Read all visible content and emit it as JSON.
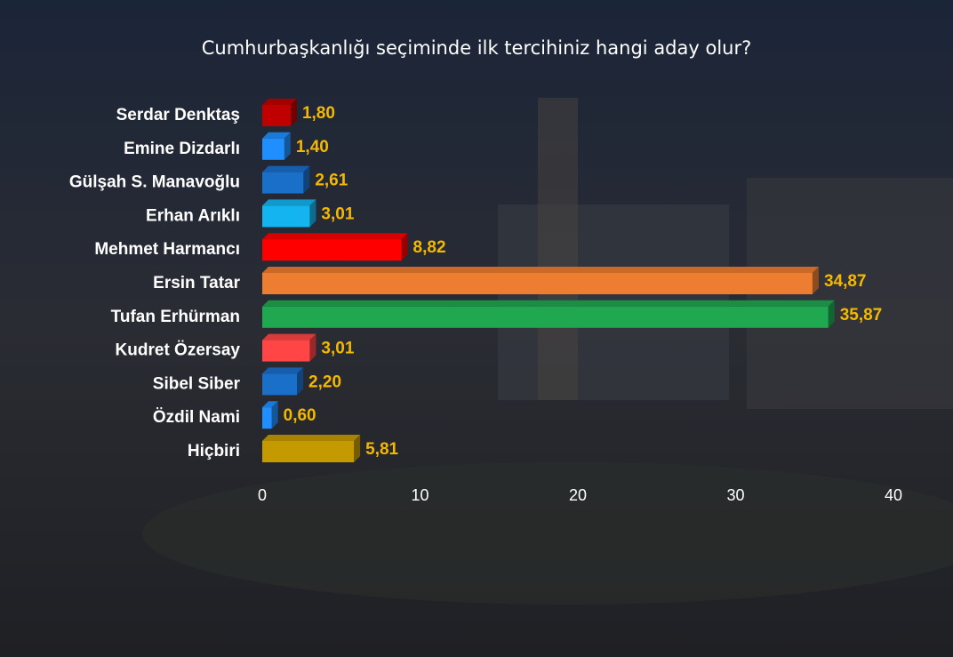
{
  "chart_data": {
    "type": "bar",
    "orientation": "horizontal",
    "title": "Cumhurbaşkanlığı seçiminde ilk tercihiniz hangi aday olur?",
    "categories": [
      "Serdar Denktaş",
      "Emine Dizdarlı",
      "Gülşah S. Manavoğlu",
      "Erhan Arıklı",
      "Mehmet Harmancı",
      "Ersin Tatar",
      "Tufan Erhürman",
      "Kudret Özersay",
      "Sibel Siber",
      "Özdil Nami",
      "Hiçbiri"
    ],
    "values": [
      1.8,
      1.4,
      2.61,
      3.01,
      8.82,
      34.87,
      35.87,
      3.01,
      2.2,
      0.6,
      5.81
    ],
    "value_labels": [
      "1,80",
      "1,40",
      "2,61",
      "3,01",
      "8,82",
      "34,87",
      "35,87",
      "3,01",
      "2,20",
      "0,60",
      "5,81"
    ],
    "colors": [
      "#c00000",
      "#1f8fff",
      "#1a6fc9",
      "#14b4f0",
      "#ff0000",
      "#ed7d31",
      "#1fa84f",
      "#ff4545",
      "#1a6fc9",
      "#1f8fff",
      "#c49a00"
    ],
    "xlim": [
      0,
      40
    ],
    "xticks": [
      0,
      10,
      20,
      30,
      40
    ],
    "grid": false
  }
}
